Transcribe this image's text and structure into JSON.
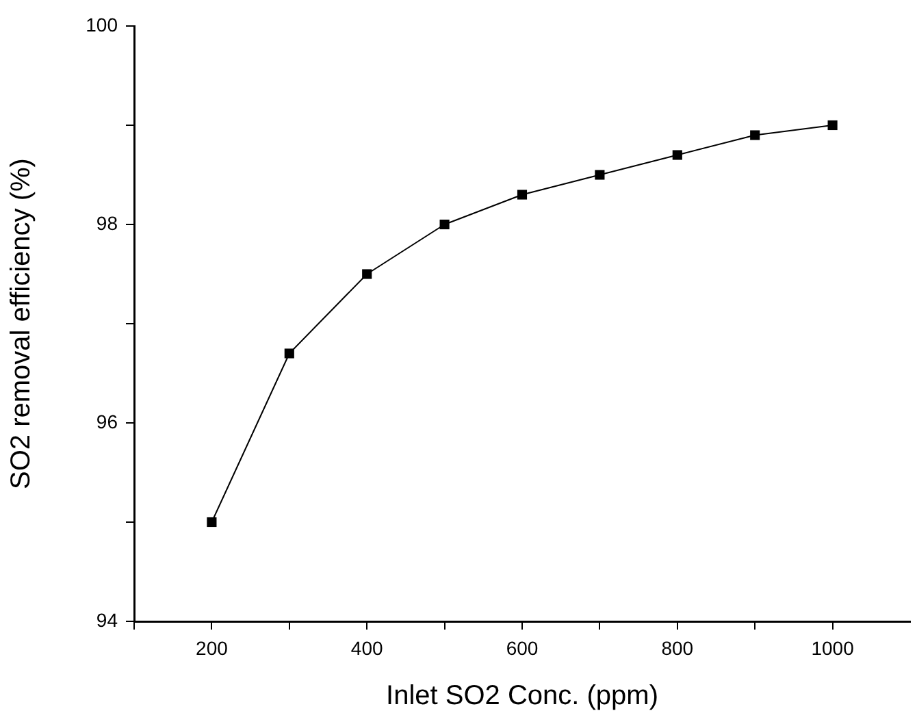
{
  "chart_data": {
    "type": "line",
    "xlabel": "Inlet SO2 Conc. (ppm)",
    "ylabel": "SO2 removal efficiency (%)",
    "x": [
      200,
      300,
      400,
      500,
      600,
      700,
      800,
      900,
      1000
    ],
    "series": [
      {
        "color": "#000000",
        "values": [
          95.0,
          96.7,
          97.5,
          98.0,
          98.3,
          98.5,
          98.7,
          98.9,
          99.0
        ]
      }
    ],
    "xlim": [
      100,
      1100
    ],
    "xticks": [
      {
        "value": 100,
        "label": null
      },
      200,
      {
        "value": 300,
        "label": null
      },
      400,
      {
        "value": 500,
        "label": null
      },
      600,
      {
        "value": 700,
        "label": null
      },
      800,
      {
        "value": 900,
        "label": null
      },
      1000
    ],
    "ylim": [
      94,
      100
    ],
    "yticks": [
      94,
      {
        "value": 95,
        "label": null
      },
      96,
      {
        "value": 97,
        "label": null
      },
      98,
      {
        "value": 99,
        "label": null
      },
      100
    ],
    "grid": false,
    "legend": false,
    "marker": "square",
    "line_style": "solid"
  }
}
